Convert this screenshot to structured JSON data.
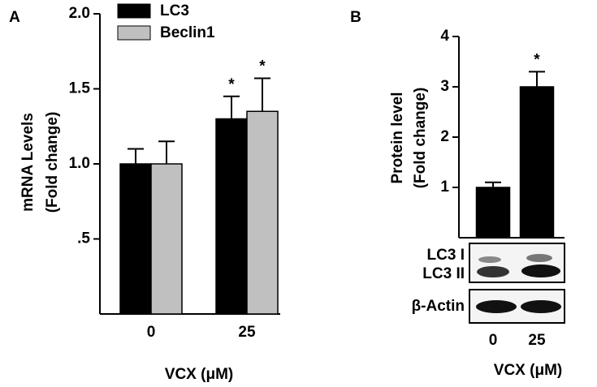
{
  "chart_data": [
    {
      "type": "bar",
      "panel": "A",
      "categories": [
        "0",
        "25"
      ],
      "series": [
        {
          "name": "LC3",
          "color": "#000000",
          "values": [
            1.0,
            1.3
          ],
          "errors": [
            0.1,
            0.15
          ],
          "annotations": [
            null,
            "*"
          ]
        },
        {
          "name": "Beclin1",
          "color": "#c0c0c0",
          "values": [
            1.0,
            1.35
          ],
          "errors": [
            0.15,
            0.22
          ],
          "annotations": [
            null,
            "*"
          ]
        }
      ],
      "ylim": [
        0,
        2
      ],
      "yticks": [
        {
          "value": 0.5,
          "label": ".5"
        },
        {
          "value": 1,
          "label": "1.0"
        },
        1.5,
        {
          "value": 2,
          "label": "2.0"
        }
      ],
      "ylabel": [
        "mRNA Levels",
        "(Fold change)"
      ],
      "xlabel": "VCX (μM)"
    },
    {
      "type": "bar",
      "panel": "B",
      "categories": [
        "0",
        "25"
      ],
      "series": [
        {
          "color": "#000000",
          "values": [
            1,
            3
          ],
          "errors": [
            0.1,
            0.3
          ],
          "annotations": [
            null,
            "*"
          ]
        }
      ],
      "ylim": [
        0,
        4
      ],
      "yticks": [
        1,
        2,
        3,
        4
      ],
      "ylabel": [
        "Protein level",
        "(Fold change)"
      ],
      "xlabel": "VCX (μM)",
      "blot_labels": [
        "LC3 I",
        "LC3 II",
        "β-Actin"
      ]
    }
  ]
}
